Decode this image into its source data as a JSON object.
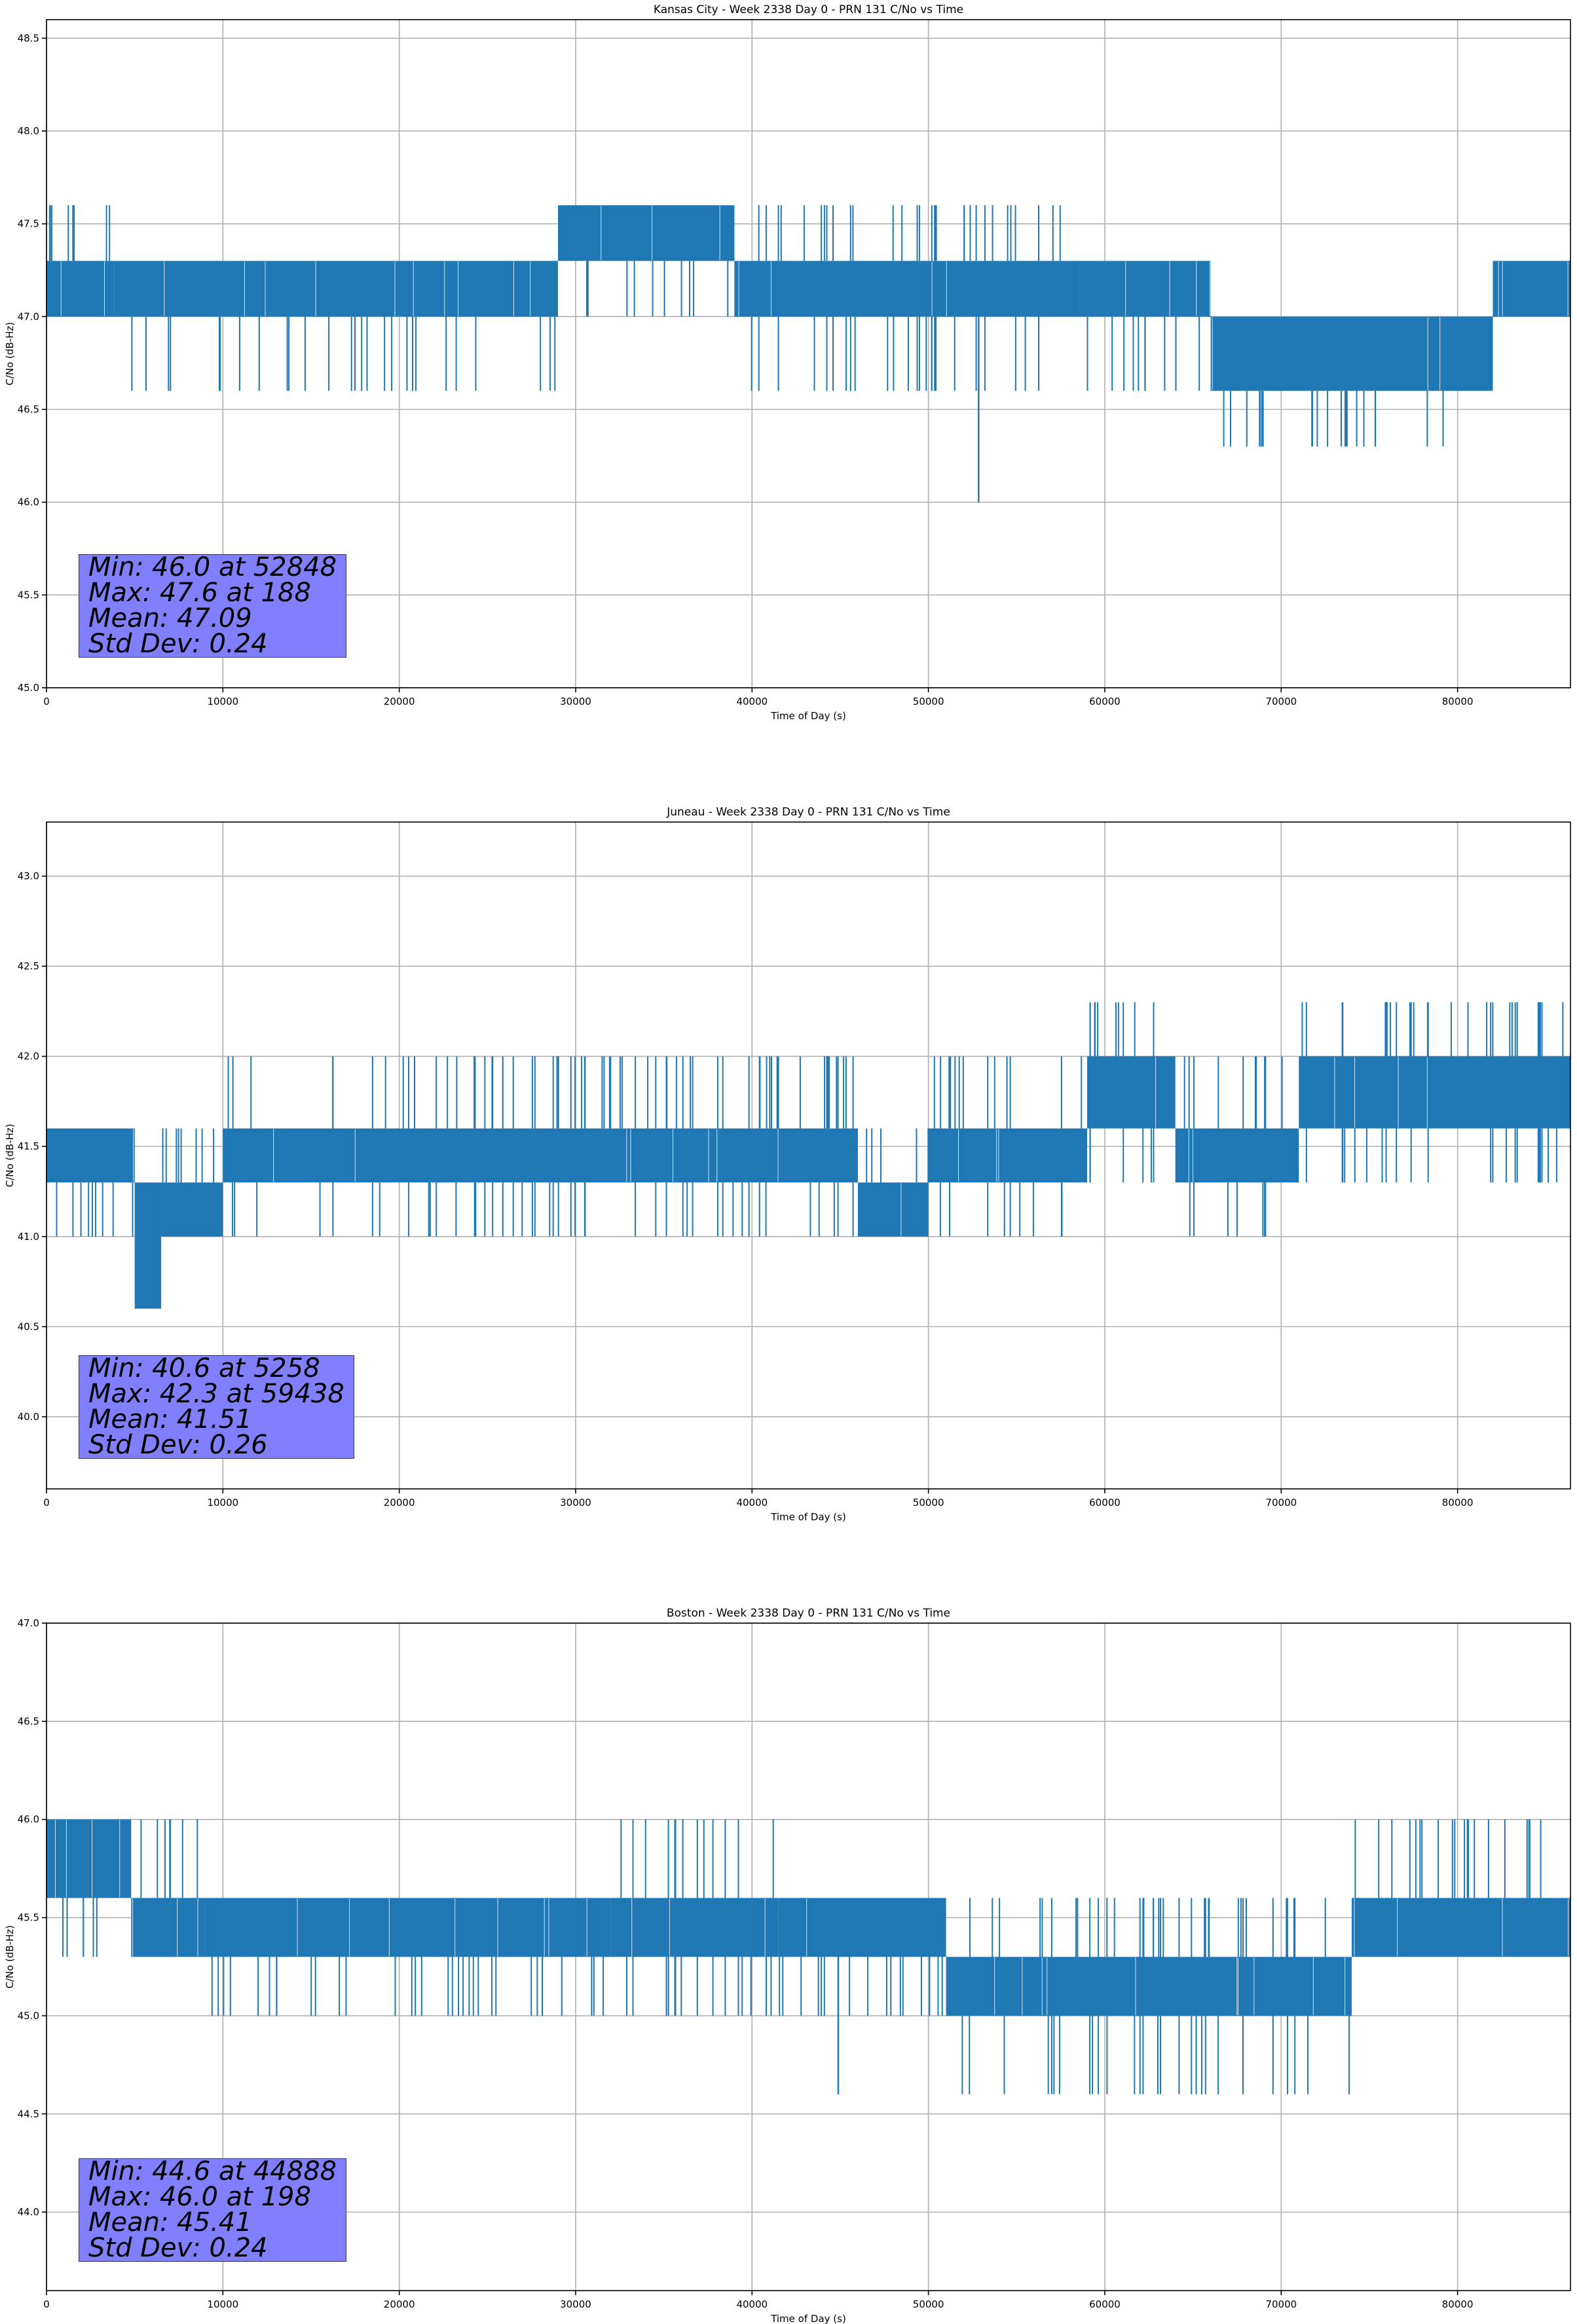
{
  "figure": {
    "series_color": "#1f77b4",
    "stats_box_color": "#8080ff"
  },
  "chart_data": [
    {
      "type": "line",
      "title": "Kansas City - Week 2338 Day 0 - PRN 131 C/No vs Time",
      "xlabel": "Time of Day (s)",
      "ylabel": "C/No (dB-Hz)",
      "xlim": [
        0,
        86400
      ],
      "ylim": [
        45.0,
        48.6
      ],
      "xticks": [
        0,
        10000,
        20000,
        30000,
        40000,
        50000,
        60000,
        70000,
        80000
      ],
      "yticks": [
        45.0,
        45.5,
        46.0,
        46.5,
        47.0,
        47.5,
        48.0,
        48.5
      ],
      "grid": true,
      "stats": [
        "Min: 46.0 at 52848",
        "Max: 47.6 at 188",
        "Mean: 47.09",
        "Std Dev: 0.24"
      ],
      "min_point": {
        "x": 52848,
        "y": 46.0
      },
      "max_point": {
        "x": 188,
        "y": 47.6
      },
      "band_segments": [
        {
          "x": [
            0,
            3800
          ],
          "y": [
            47.0,
            47.3
          ],
          "spikes_up": 47.6,
          "spikes_down": 47.0
        },
        {
          "x": [
            3800,
            29000
          ],
          "y": [
            47.0,
            47.3
          ],
          "spikes_up": 47.3,
          "spikes_down": 46.6
        },
        {
          "x": [
            29000,
            39000
          ],
          "y": [
            47.3,
            47.6
          ],
          "spikes_up": 47.6,
          "spikes_down": 47.0
        },
        {
          "x": [
            39000,
            58500
          ],
          "y": [
            47.0,
            47.3
          ],
          "spikes_up": 47.6,
          "spikes_down": 46.6
        },
        {
          "x": [
            58500,
            66000
          ],
          "y": [
            47.0,
            47.3
          ],
          "spikes_up": 47.3,
          "spikes_down": 46.6
        },
        {
          "x": [
            66000,
            82000
          ],
          "y": [
            46.6,
            47.0
          ],
          "spikes_up": 47.0,
          "spikes_down": 46.3
        },
        {
          "x": [
            82000,
            86400
          ],
          "y": [
            47.0,
            47.3
          ],
          "spikes_up": 47.3,
          "spikes_down": 47.0
        }
      ]
    },
    {
      "type": "line",
      "title": "Juneau - Week 2338 Day 0 - PRN 131 C/No vs Time",
      "xlabel": "Time of Day (s)",
      "ylabel": "C/No (dB-Hz)",
      "xlim": [
        0,
        86400
      ],
      "ylim": [
        39.6,
        43.3
      ],
      "xticks": [
        0,
        10000,
        20000,
        30000,
        40000,
        50000,
        60000,
        70000,
        80000
      ],
      "yticks": [
        40.0,
        40.5,
        41.0,
        41.5,
        42.0,
        42.5,
        43.0
      ],
      "grid": true,
      "stats": [
        "Min: 40.6 at 5258",
        "Max: 42.3 at 59438",
        "Mean: 41.51",
        "Std Dev: 0.26"
      ],
      "min_point": {
        "x": 5258,
        "y": 40.6
      },
      "max_point": {
        "x": 59438,
        "y": 42.3
      },
      "band_segments": [
        {
          "x": [
            0,
            5000
          ],
          "y": [
            41.3,
            41.6
          ],
          "spikes_up": 41.6,
          "spikes_down": 41.0
        },
        {
          "x": [
            5000,
            6500
          ],
          "y": [
            40.6,
            41.3
          ],
          "spikes_up": 41.3,
          "spikes_down": 40.6
        },
        {
          "x": [
            6500,
            10000
          ],
          "y": [
            41.0,
            41.3
          ],
          "spikes_up": 41.6,
          "spikes_down": 41.0
        },
        {
          "x": [
            10000,
            46000
          ],
          "y": [
            41.3,
            41.6
          ],
          "spikes_up": 42.0,
          "spikes_down": 41.0
        },
        {
          "x": [
            46000,
            50000
          ],
          "y": [
            41.0,
            41.3
          ],
          "spikes_up": 41.6,
          "spikes_down": 41.0
        },
        {
          "x": [
            50000,
            59000
          ],
          "y": [
            41.3,
            41.6
          ],
          "spikes_up": 42.0,
          "spikes_down": 41.0
        },
        {
          "x": [
            59000,
            64000
          ],
          "y": [
            41.6,
            42.0
          ],
          "spikes_up": 42.3,
          "spikes_down": 41.3
        },
        {
          "x": [
            64000,
            71000
          ],
          "y": [
            41.3,
            41.6
          ],
          "spikes_up": 42.0,
          "spikes_down": 41.0
        },
        {
          "x": [
            71000,
            86400
          ],
          "y": [
            41.6,
            42.0
          ],
          "spikes_up": 42.3,
          "spikes_down": 41.3
        }
      ]
    },
    {
      "type": "line",
      "title": "Boston - Week 2338 Day 0 - PRN 131 C/No vs Time",
      "xlabel": "Time of Day (s)",
      "ylabel": "C/No (dB-Hz)",
      "xlim": [
        0,
        86400
      ],
      "ylim": [
        43.6,
        47.0
      ],
      "xticks": [
        0,
        10000,
        20000,
        30000,
        40000,
        50000,
        60000,
        70000,
        80000
      ],
      "yticks": [
        44.0,
        44.5,
        45.0,
        45.5,
        46.0,
        46.5,
        47.0
      ],
      "grid": true,
      "stats": [
        "Min: 44.6 at 44888",
        "Max: 46.0 at 198",
        "Mean: 45.41",
        "Std Dev: 0.24"
      ],
      "min_point": {
        "x": 44888,
        "y": 44.6
      },
      "max_point": {
        "x": 198,
        "y": 46.0
      },
      "band_segments": [
        {
          "x": [
            0,
            4800
          ],
          "y": [
            45.6,
            46.0
          ],
          "spikes_up": 46.0,
          "spikes_down": 45.3
        },
        {
          "x": [
            4800,
            9000
          ],
          "y": [
            45.3,
            45.6
          ],
          "spikes_up": 46.0,
          "spikes_down": 45.3
        },
        {
          "x": [
            9000,
            32000
          ],
          "y": [
            45.3,
            45.6
          ],
          "spikes_up": 45.6,
          "spikes_down": 45.0
        },
        {
          "x": [
            32000,
            41500
          ],
          "y": [
            45.3,
            45.6
          ],
          "spikes_up": 46.0,
          "spikes_down": 45.0
        },
        {
          "x": [
            41500,
            51000
          ],
          "y": [
            45.3,
            45.6
          ],
          "spikes_up": 45.6,
          "spikes_down": 45.0
        },
        {
          "x": [
            51000,
            74000
          ],
          "y": [
            45.0,
            45.3
          ],
          "spikes_up": 45.6,
          "spikes_down": 44.6
        },
        {
          "x": [
            74000,
            86400
          ],
          "y": [
            45.3,
            45.6
          ],
          "spikes_up": 46.0,
          "spikes_down": 45.3
        }
      ]
    }
  ]
}
